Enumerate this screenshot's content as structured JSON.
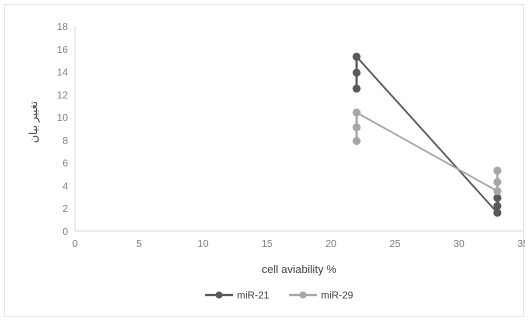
{
  "chart_data": {
    "type": "scatter",
    "xlabel": "cell aviability %",
    "ylabel": "تغییر بیان",
    "xlim": [
      0,
      35
    ],
    "ylim": [
      0,
      18
    ],
    "x_ticks": [
      0,
      5,
      10,
      15,
      20,
      25,
      30,
      35
    ],
    "y_ticks": [
      0,
      2,
      4,
      6,
      8,
      10,
      12,
      14,
      16,
      18
    ],
    "grid": false,
    "legend_position": "bottom",
    "series": [
      {
        "name": "miR-21",
        "color": "#595959",
        "points": [
          {
            "x": 22,
            "y": 15.3
          },
          {
            "x": 22,
            "y": 13.9
          },
          {
            "x": 22,
            "y": 12.5
          },
          {
            "x": 33,
            "y": 2.9
          },
          {
            "x": 33,
            "y": 2.2
          },
          {
            "x": 33,
            "y": 1.6
          }
        ],
        "trend": [
          {
            "x": 22,
            "y": 15.3
          },
          {
            "x": 33,
            "y": 1.6
          }
        ]
      },
      {
        "name": "miR-29",
        "color": "#a6a6a6",
        "points": [
          {
            "x": 22,
            "y": 10.4
          },
          {
            "x": 22,
            "y": 9.1
          },
          {
            "x": 22,
            "y": 7.9
          },
          {
            "x": 33,
            "y": 5.3
          },
          {
            "x": 33,
            "y": 4.3
          },
          {
            "x": 33,
            "y": 3.5
          }
        ],
        "trend": [
          {
            "x": 22,
            "y": 10.4
          },
          {
            "x": 33,
            "y": 3.5
          }
        ]
      }
    ]
  }
}
